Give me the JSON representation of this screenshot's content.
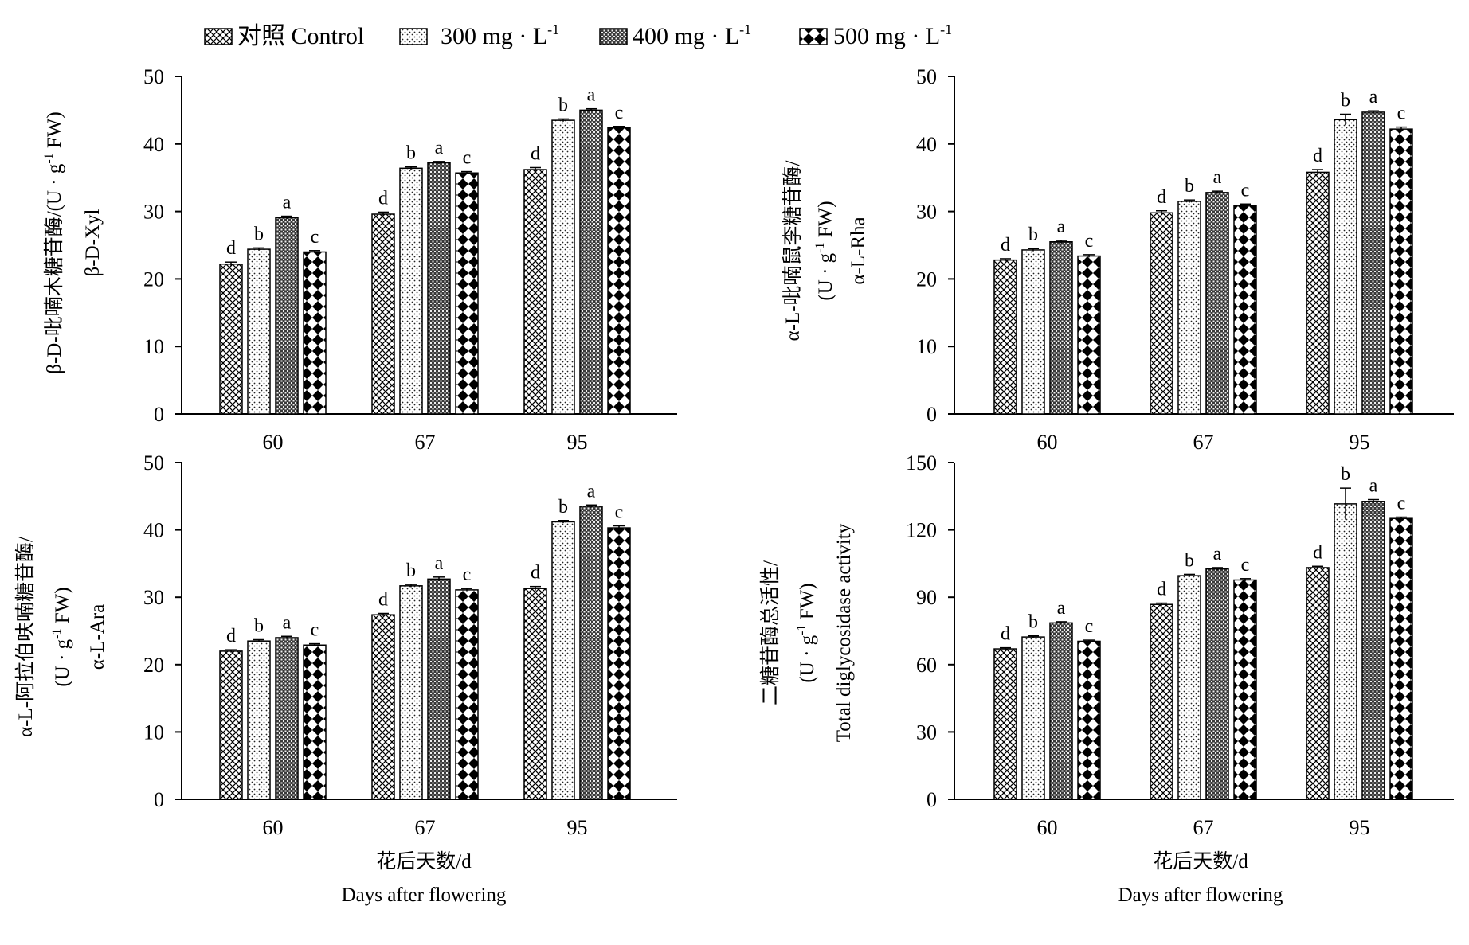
{
  "legend": [
    {
      "label": "对照 Control",
      "sup": "",
      "pattern": "cross"
    },
    {
      "label": "300 mg · L",
      "sup": "-1",
      "pattern": "dots"
    },
    {
      "label": "400 mg · L",
      "sup": "-1",
      "pattern": "dense"
    },
    {
      "label": "500 mg · L",
      "sup": "-1",
      "pattern": "diamond"
    }
  ],
  "chart_data": [
    {
      "type": "bar",
      "ylabel_lines": [
        "β-D-吡喃木糖苷酶/(U · g",
        "β-D-Xyl"
      ],
      "ylabel_line1_tail": " FW)",
      "ylabel_line1_sup": "-1",
      "ylim": [
        0,
        50
      ],
      "yticks": [
        "0",
        "10",
        "20",
        "30",
        "40",
        "50"
      ],
      "categories": [
        "60",
        "67",
        "95"
      ],
      "xlabel_lines": [
        "",
        ""
      ],
      "series": [
        {
          "values": [
            22.2,
            29.6,
            36.2
          ],
          "errors": [
            0.3,
            0.3,
            0.3
          ],
          "letters": [
            "d",
            "d",
            "d"
          ]
        },
        {
          "values": [
            24.4,
            36.4,
            43.5
          ],
          "errors": [
            0.2,
            0.2,
            0.2
          ],
          "letters": [
            "b",
            "b",
            "b"
          ]
        },
        {
          "values": [
            29.1,
            37.2,
            45.0
          ],
          "errors": [
            0.2,
            0.2,
            0.2
          ],
          "letters": [
            "a",
            "a",
            "a"
          ]
        },
        {
          "values": [
            24.0,
            35.7,
            42.4
          ],
          "errors": [
            0.2,
            0.2,
            0.2
          ],
          "letters": [
            "c",
            "c",
            "c"
          ]
        }
      ]
    },
    {
      "type": "bar",
      "ylabel_lines": [
        "α-L-吡喃鼠李糖苷酶/",
        "(U · g",
        "α-L-Rha"
      ],
      "ylabel_line2_tail": " FW)",
      "ylabel_line2_sup": "-1",
      "ylim": [
        0,
        50
      ],
      "yticks": [
        "0",
        "10",
        "20",
        "30",
        "40",
        "50"
      ],
      "categories": [
        "60",
        "67",
        "95"
      ],
      "xlabel_lines": [
        "",
        ""
      ],
      "series": [
        {
          "values": [
            22.8,
            29.8,
            35.8
          ],
          "errors": [
            0.2,
            0.3,
            0.4
          ],
          "letters": [
            "d",
            "d",
            "d"
          ]
        },
        {
          "values": [
            24.3,
            31.5,
            43.6
          ],
          "errors": [
            0.2,
            0.2,
            0.8
          ],
          "letters": [
            "b",
            "b",
            "b"
          ]
        },
        {
          "values": [
            25.5,
            32.8,
            44.7
          ],
          "errors": [
            0.2,
            0.2,
            0.2
          ],
          "letters": [
            "a",
            "a",
            "a"
          ]
        },
        {
          "values": [
            23.4,
            30.9,
            42.2
          ],
          "errors": [
            0.2,
            0.2,
            0.3
          ],
          "letters": [
            "c",
            "c",
            "c"
          ]
        }
      ]
    },
    {
      "type": "bar",
      "ylabel_lines": [
        "α-L-阿拉伯呋喃糖苷酶/",
        "(U · g",
        "α-L-Ara"
      ],
      "ylabel_line2_tail": " FW)",
      "ylabel_line2_sup": "-1",
      "ylim": [
        0,
        50
      ],
      "yticks": [
        "0",
        "10",
        "20",
        "30",
        "40",
        "50"
      ],
      "categories": [
        "60",
        "67",
        "95"
      ],
      "xlabel_lines": [
        "花后天数/d",
        "Days after flowering"
      ],
      "series": [
        {
          "values": [
            22.0,
            27.4,
            31.3
          ],
          "errors": [
            0.2,
            0.2,
            0.3
          ],
          "letters": [
            "d",
            "d",
            "d"
          ]
        },
        {
          "values": [
            23.5,
            31.7,
            41.2
          ],
          "errors": [
            0.2,
            0.2,
            0.2
          ],
          "letters": [
            "b",
            "b",
            "b"
          ]
        },
        {
          "values": [
            24.0,
            32.7,
            43.5
          ],
          "errors": [
            0.2,
            0.3,
            0.2
          ],
          "letters": [
            "a",
            "a",
            "a"
          ]
        },
        {
          "values": [
            22.9,
            31.1,
            40.3
          ],
          "errors": [
            0.2,
            0.2,
            0.3
          ],
          "letters": [
            "c",
            "c",
            "c"
          ]
        }
      ]
    },
    {
      "type": "bar",
      "ylabel_lines": [
        "二糖苷酶总活性/",
        "(U · g",
        "Total diglycosidase activity"
      ],
      "ylabel_line2_tail": " FW)",
      "ylabel_line2_sup": "-1",
      "ylim": [
        0,
        150
      ],
      "yticks": [
        "0",
        "30",
        "60",
        "90",
        "120",
        "150"
      ],
      "categories": [
        "60",
        "67",
        "95"
      ],
      "xlabel_lines": [
        "花后天数/d",
        "Days after flowering"
      ],
      "series": [
        {
          "values": [
            67.0,
            86.8,
            103.2
          ],
          "errors": [
            0.5,
            0.6,
            0.6
          ],
          "letters": [
            "d",
            "d",
            "d"
          ]
        },
        {
          "values": [
            72.3,
            99.6,
            131.6
          ],
          "errors": [
            0.5,
            0.6,
            7.0
          ],
          "letters": [
            "b",
            "b",
            "b"
          ]
        },
        {
          "values": [
            78.6,
            102.6,
            132.7
          ],
          "errors": [
            0.5,
            0.6,
            0.8
          ],
          "letters": [
            "a",
            "a",
            "a"
          ]
        },
        {
          "values": [
            70.4,
            97.7,
            125.1
          ],
          "errors": [
            0.5,
            0.6,
            0.6
          ],
          "letters": [
            "c",
            "c",
            "c"
          ]
        }
      ]
    }
  ]
}
